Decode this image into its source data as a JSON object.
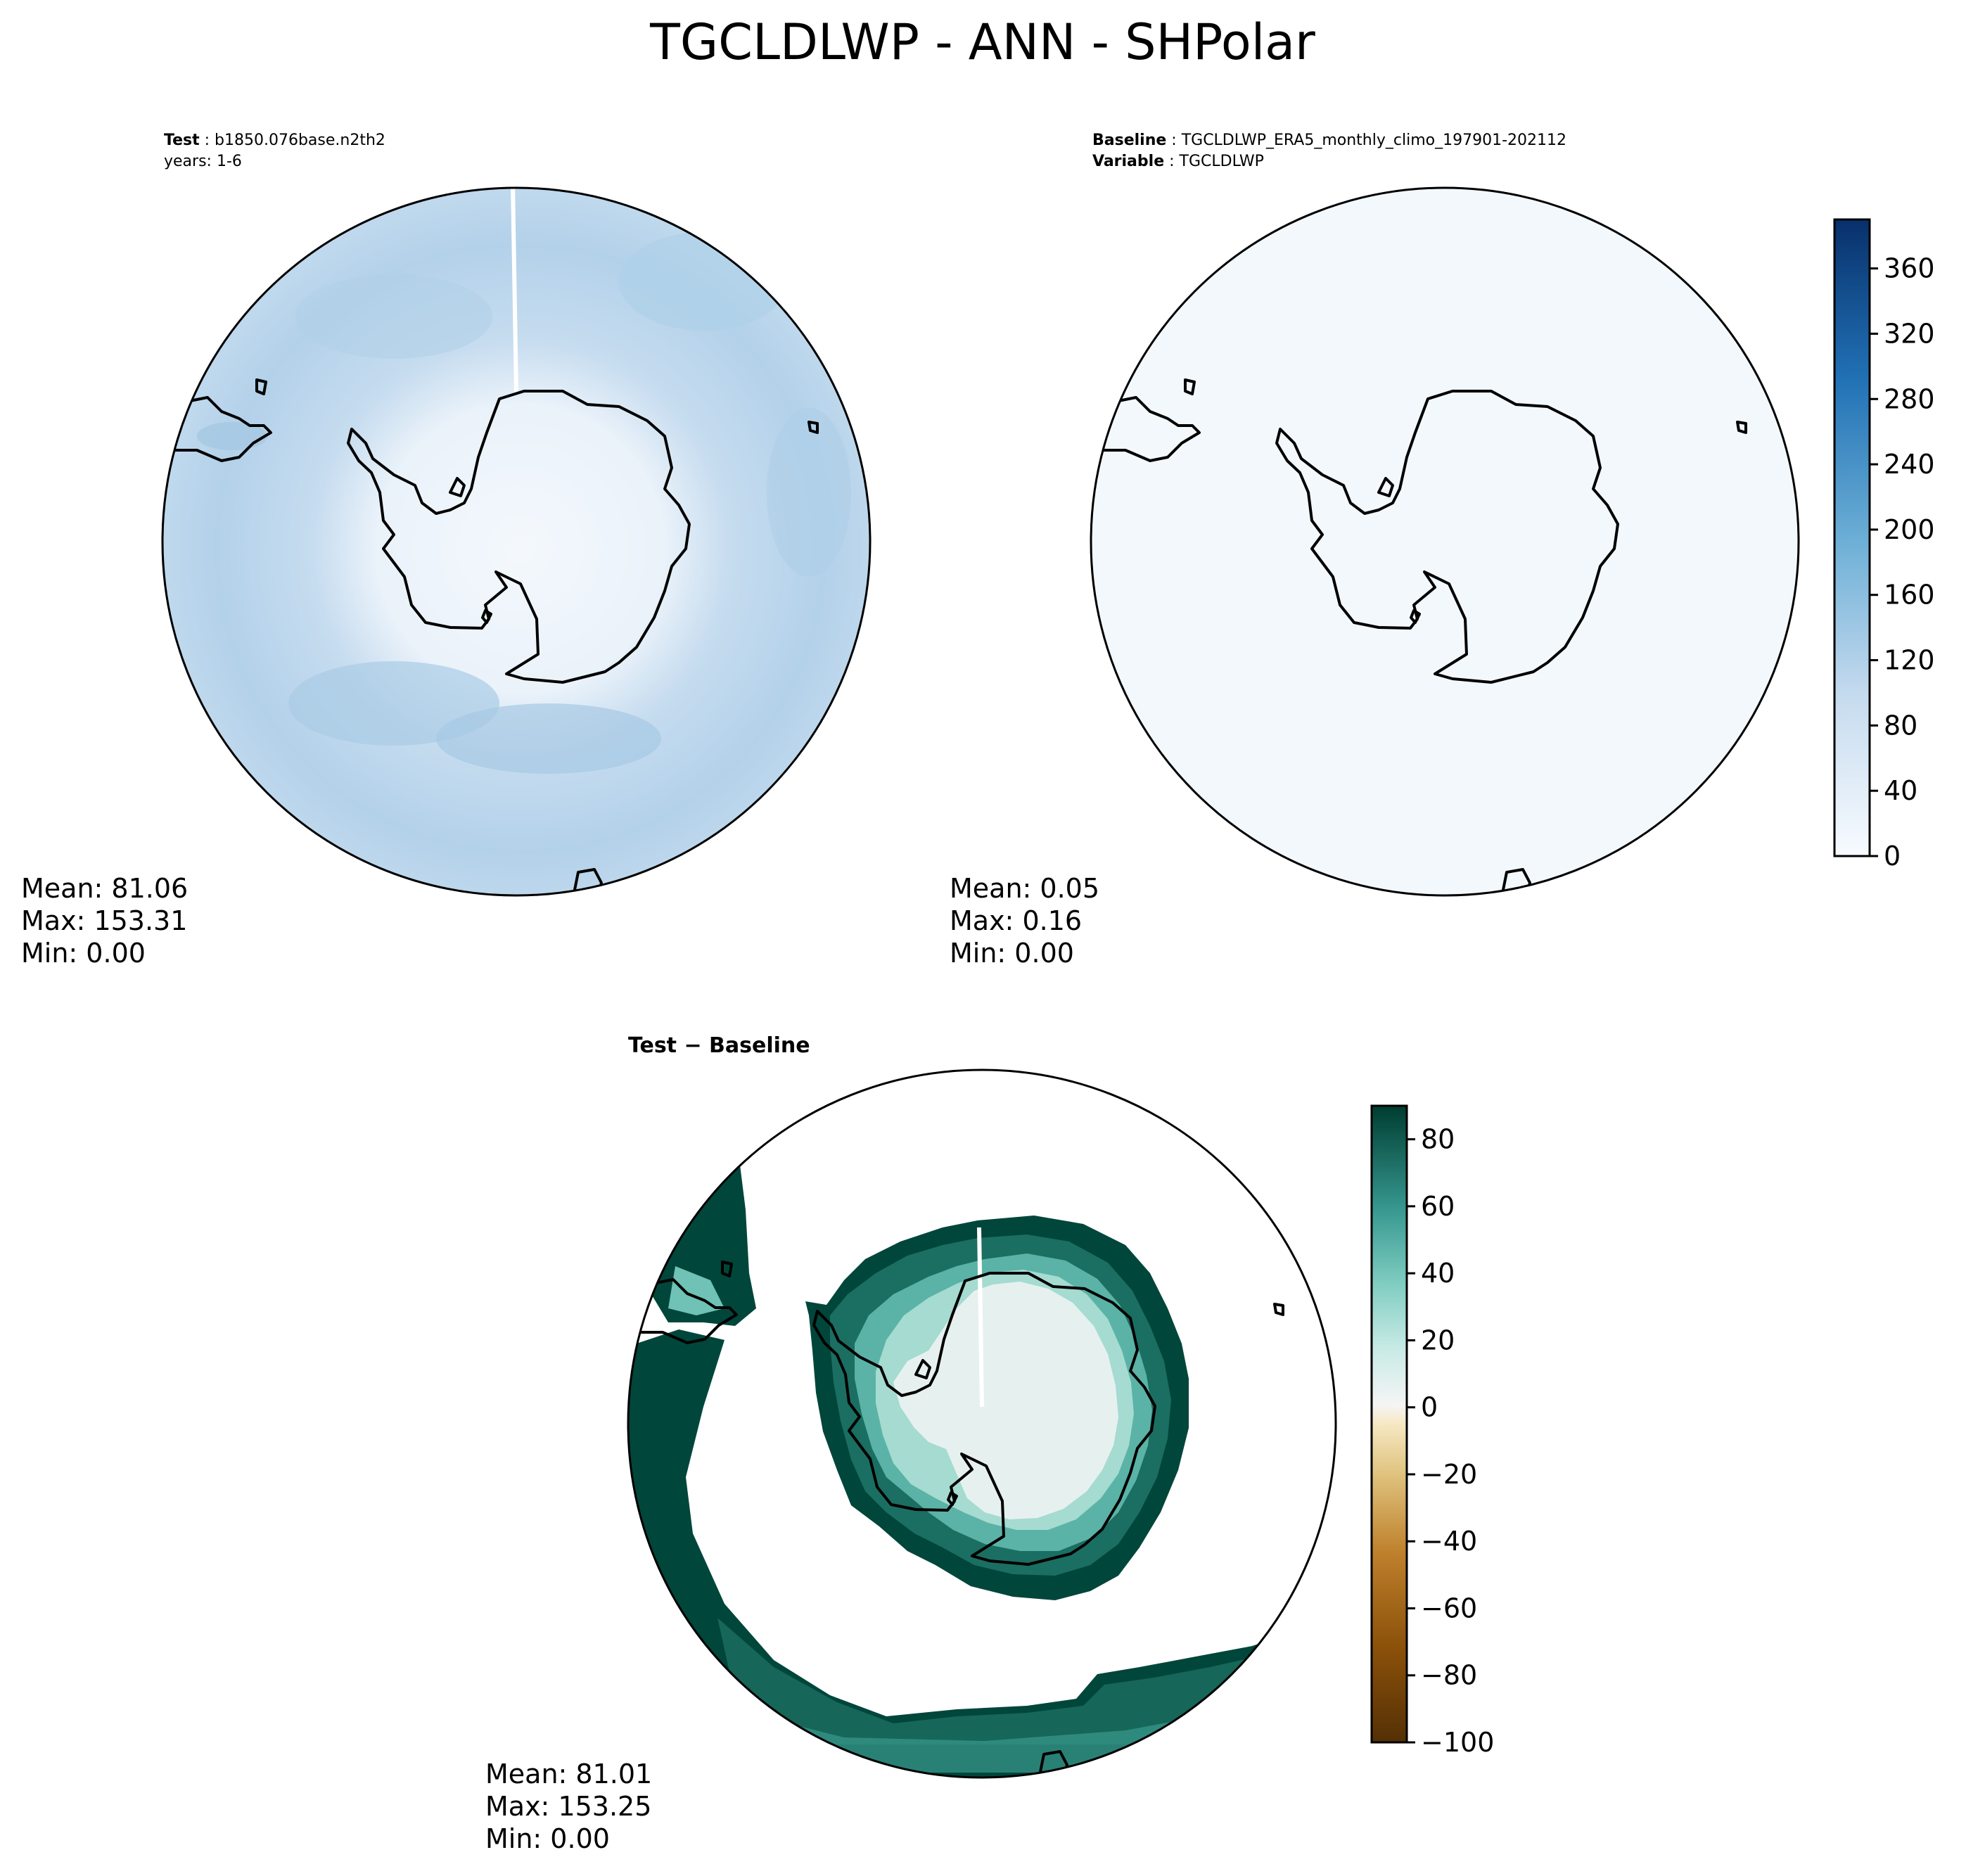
{
  "title": "TGCLDLWP - ANN - SHPolar",
  "panels": {
    "test": {
      "header_label": "Test",
      "header_value": "b1850.076base.n2th2",
      "header_line2": "years: 1-6",
      "stats": {
        "mean": "Mean: 81.06",
        "max": "Max: 153.31",
        "min": "Min:  0.00"
      }
    },
    "baseline": {
      "header_label": "Baseline",
      "header_value": "TGCLDLWP_ERA5_monthly_climo_197901-202112",
      "header_label2": "Variable",
      "header_value2": "TGCLDLWP",
      "stats": {
        "mean": "Mean:  0.05",
        "max": "Max:  0.16",
        "min": "Min:  0.00"
      }
    },
    "diff": {
      "header": "Test − Baseline",
      "stats": {
        "mean": "Mean: 81.01",
        "max": "Max: 153.25",
        "min": "Min:  0.00"
      }
    }
  },
  "colorbars": {
    "sequential": {
      "ticks": [
        "0",
        "40",
        "80",
        "120",
        "160",
        "200",
        "240",
        "280",
        "320",
        "360"
      ],
      "tick_values": [
        0,
        40,
        80,
        120,
        160,
        200,
        240,
        280,
        320,
        360
      ],
      "range": [
        0,
        390
      ],
      "colormap": "Blues"
    },
    "diverging": {
      "ticks": [
        "−100",
        "−80",
        "−60",
        "−40",
        "−20",
        "0",
        "20",
        "40",
        "60",
        "80"
      ],
      "tick_values": [
        -100,
        -80,
        -60,
        -40,
        -20,
        0,
        20,
        40,
        60,
        80
      ],
      "range": [
        -100,
        90
      ],
      "colormap": "BrBG"
    }
  },
  "colors": {
    "ocean_test": "#bdd6ec",
    "antarctica_test": "#f3f7fc",
    "baseline_fill": "#f3f8fd",
    "diff_dark": "#01463b",
    "diff_mid": "#3a9a8f",
    "diff_light": "#a5dbd1",
    "diff_land": "#e6f1ef"
  }
}
